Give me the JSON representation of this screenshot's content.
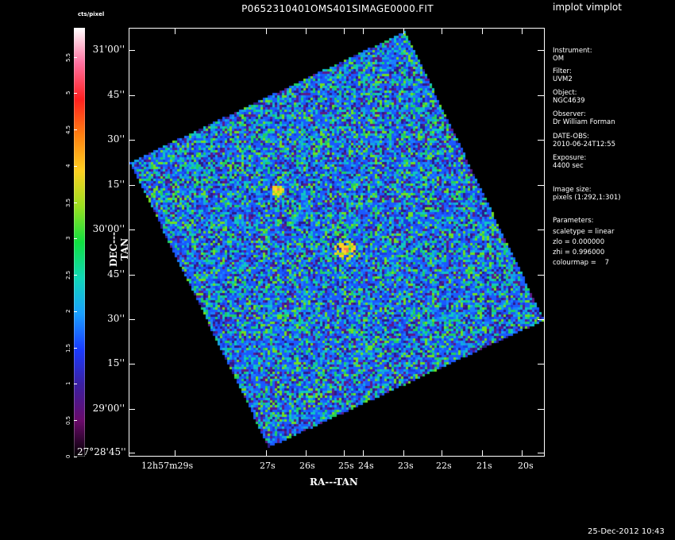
{
  "header": {
    "title": "P0652310401OMS401SIMAGE0000.FIT",
    "app_label": "implot vimplot"
  },
  "colorbar": {
    "unit_label": "cts/pixel",
    "ticks": [
      "0",
      "0.5",
      "1",
      "1.5",
      "2",
      "2.5",
      "3",
      "3.5",
      "4",
      "4.5",
      "5",
      "5.5"
    ],
    "colormap": [
      "#000000",
      "#6a0a6a",
      "#3b1fa0",
      "#1a3cff",
      "#1aa0ff",
      "#10d8b8",
      "#10e040",
      "#9ae020",
      "#ffd020",
      "#ff8010",
      "#ff2020",
      "#ff70a0",
      "#ffffff"
    ]
  },
  "axes": {
    "dec_title": "DEC---TAN",
    "ra_title": "RA---TAN",
    "dec_ticks": [
      "31'00''",
      "45''",
      "30''",
      "15''",
      "30'00''",
      "45''",
      "30''",
      "15''",
      "29'00''",
      "27°28'45''"
    ],
    "ra_ticks": [
      "12h57m29s",
      "27s",
      "26s",
      "25s",
      "24s",
      "23s",
      "22s",
      "21s",
      "20s"
    ]
  },
  "info": {
    "instrument_label": "Instrument:",
    "instrument": "OM",
    "filter_label": "Filter:",
    "filter": "UVM2",
    "object_label": "Object:",
    "object": "NGC4639",
    "observer_label": "Observer:",
    "observer": "Dr William Forman",
    "date_label": "DATE-OBS:",
    "date": "2010-06-24T12:55",
    "exposure_label": "Exposure:",
    "exposure": "4400 sec",
    "image_size_label": "Image size:",
    "image_size": "pixels (1:292,1:301)",
    "parameters_label": "Parameters:",
    "scaletype": "scaletype = linear",
    "zlo": "zlo = 0.000000",
    "zhi": "zhi = 0.996000",
    "colourmap": "colourmap =    7"
  },
  "footer": {
    "timestamp": "25-Dec-2012 10:43"
  }
}
